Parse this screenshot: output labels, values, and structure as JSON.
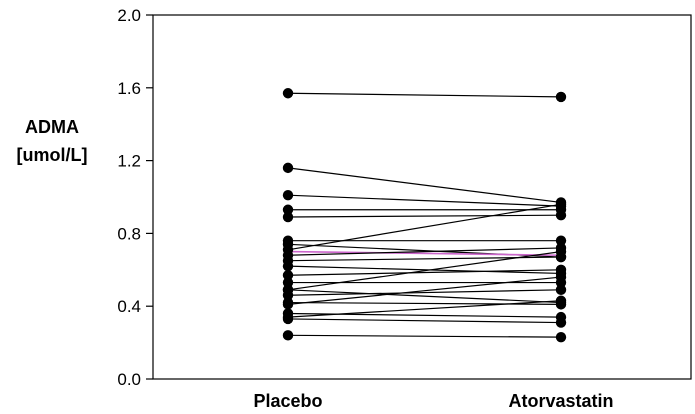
{
  "chart_data": {
    "type": "line",
    "title": "",
    "xlabel": "",
    "ylabel_lines": [
      "ADMA",
      "[umol/L]"
    ],
    "categories": [
      "Placebo",
      "Atorvastatin"
    ],
    "ylim": [
      0.0,
      2.0
    ],
    "yticks": [
      0.0,
      0.4,
      0.8,
      1.2,
      1.6,
      2.0
    ],
    "ytick_labels": [
      "0.0",
      "0.4",
      "0.8",
      "1.2",
      "1.6",
      "2.0"
    ],
    "grid": false,
    "legend": "none",
    "line_color": "#000000",
    "highlight_color": "#cc66cc",
    "pairs": [
      {
        "placebo": 1.57,
        "atorvastatin": 1.55
      },
      {
        "placebo": 1.16,
        "atorvastatin": 0.97
      },
      {
        "placebo": 1.01,
        "atorvastatin": 0.95
      },
      {
        "placebo": 0.93,
        "atorvastatin": 0.93
      },
      {
        "placebo": 0.89,
        "atorvastatin": 0.9
      },
      {
        "placebo": 0.76,
        "atorvastatin": 0.76
      },
      {
        "placebo": 0.74,
        "atorvastatin": 0.67
      },
      {
        "placebo": 0.71,
        "atorvastatin": 0.96
      },
      {
        "placebo": 0.7,
        "atorvastatin": 0.68,
        "highlight": true
      },
      {
        "placebo": 0.68,
        "atorvastatin": 0.72
      },
      {
        "placebo": 0.65,
        "atorvastatin": 0.67
      },
      {
        "placebo": 0.62,
        "atorvastatin": 0.58
      },
      {
        "placebo": 0.57,
        "atorvastatin": 0.6
      },
      {
        "placebo": 0.53,
        "atorvastatin": 0.53
      },
      {
        "placebo": 0.49,
        "atorvastatin": 0.7
      },
      {
        "placebo": 0.49,
        "atorvastatin": 0.42
      },
      {
        "placebo": 0.46,
        "atorvastatin": 0.49
      },
      {
        "placebo": 0.42,
        "atorvastatin": 0.41
      },
      {
        "placebo": 0.41,
        "atorvastatin": 0.56
      },
      {
        "placebo": 0.36,
        "atorvastatin": 0.34
      },
      {
        "placebo": 0.34,
        "atorvastatin": 0.43
      },
      {
        "placebo": 0.33,
        "atorvastatin": 0.31
      },
      {
        "placebo": 0.24,
        "atorvastatin": 0.23
      }
    ]
  }
}
